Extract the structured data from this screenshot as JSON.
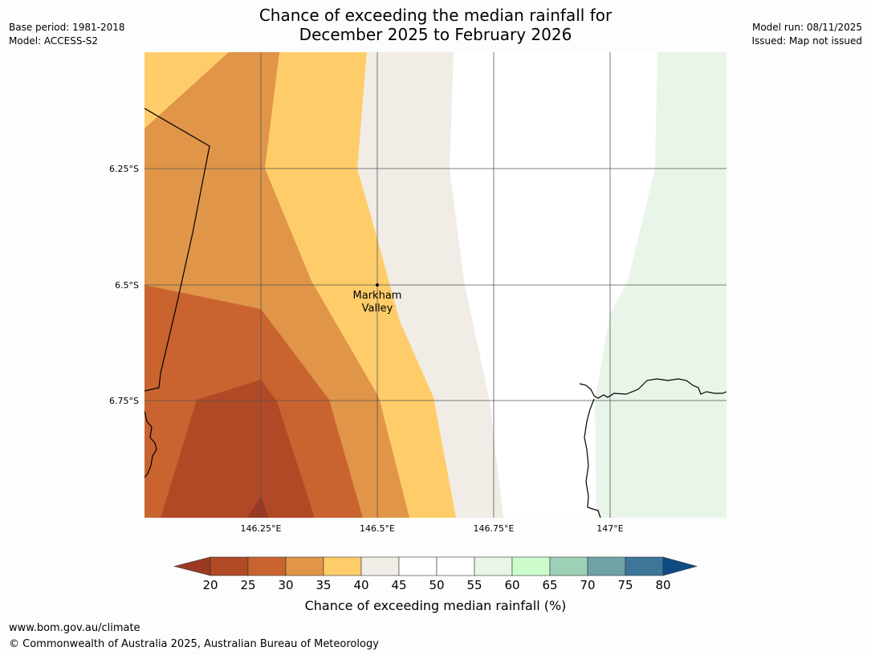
{
  "header": {
    "title_line1": "Chance of exceeding the median rainfall for",
    "title_line2": "December 2025 to February 2026",
    "base_period": "Base period: 1981-2018",
    "model": "Model: ACCESS-S2",
    "model_run": "Model run: 08/11/2025",
    "issued": "Issued: Map not issued"
  },
  "map": {
    "lon_ticks": [
      "146.25°E",
      "146.5°E",
      "146.75°E",
      "147°E"
    ],
    "lat_ticks": [
      "6.25°S",
      "6.5°S",
      "6.75°S"
    ],
    "location_label_line1": "Markham",
    "location_label_line2": "Valley",
    "colors": {
      "below_20": "#9b3a24",
      "20_25": "#b04a26",
      "25_30": "#c96430",
      "30_35": "#e09548",
      "35_40": "#fecd6a",
      "40_45": "#f1ece6",
      "45_50": "#ffffff",
      "50_55": "#ffffff",
      "55_60": "#e9f5e8",
      "60_65": "#ccfccc",
      "65_70": "#9dd0b7",
      "70_75": "#6fa4a6",
      "75_80": "#3d7699",
      "above_80": "#0e4b84"
    }
  },
  "colorbar": {
    "ticks": [
      "20",
      "25",
      "30",
      "35",
      "40",
      "45",
      "50",
      "55",
      "60",
      "65",
      "70",
      "75",
      "80"
    ],
    "colors": [
      "#b04a26",
      "#c96430",
      "#e09548",
      "#fecd6a",
      "#f1ece6",
      "#ffffff",
      "#ffffff",
      "#e9f5e8",
      "#ccfccc",
      "#9dd0b7",
      "#6fa4a6",
      "#3d7699"
    ],
    "low_color": "#9b3a24",
    "high_color": "#0e4b84",
    "label": "Chance of exceeding median rainfall (%)"
  },
  "footer": {
    "url": "www.bom.gov.au/climate",
    "copyright": "© Commonwealth of Australia 2025, Australian Bureau of Meteorology"
  }
}
